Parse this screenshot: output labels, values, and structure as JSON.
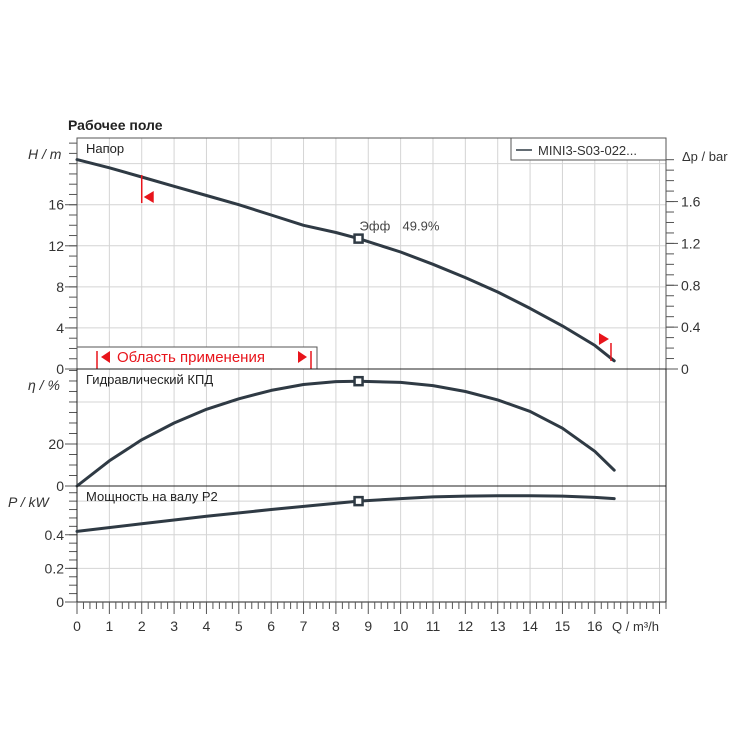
{
  "title": "Рабочее поле",
  "legend": "MINI3-S03-022...",
  "colors": {
    "curve": "#2f3a44",
    "grid": "#d4d4d4",
    "accent": "#e8141b",
    "axis": "#555555"
  },
  "chart_data": [
    {
      "type": "line",
      "panel": "head",
      "label": "Напор",
      "ylabel": "H / m",
      "ylabel_right": "Δp / bar",
      "ylim": [
        0,
        22.5
      ],
      "yticks": [
        0,
        4,
        8,
        12,
        16
      ],
      "yticks_right": [
        0,
        0.4,
        0.8,
        1.2,
        1.6
      ],
      "x": [
        0,
        1,
        2,
        3,
        4,
        5,
        6,
        7,
        8,
        8.7,
        10,
        11,
        12,
        13,
        14,
        15,
        16,
        16.6
      ],
      "y": [
        20.4,
        19.6,
        18.7,
        17.8,
        16.9,
        16.0,
        15.0,
        14.0,
        13.3,
        12.7,
        11.4,
        10.2,
        8.9,
        7.5,
        5.9,
        4.2,
        2.3,
        0.8
      ],
      "annotation": {
        "text_label": "Эфф",
        "text_value": "49.9%",
        "x": 8.7,
        "y": 12.7
      },
      "application_area": {
        "label": "Область применения",
        "q_min": 2,
        "q_max": 16.5
      }
    },
    {
      "type": "line",
      "panel": "efficiency",
      "label": "Гидравлический КПД",
      "ylabel": "η / %",
      "ylim": [
        0,
        55.7
      ],
      "yticks": [
        0,
        20
      ],
      "x": [
        0,
        1,
        2,
        3,
        4,
        5,
        6,
        7,
        8,
        8.7,
        10,
        11,
        12,
        13,
        14,
        15,
        16,
        16.6
      ],
      "y": [
        0,
        12,
        22,
        30,
        36.5,
        41.5,
        45.5,
        48.3,
        49.7,
        49.9,
        49.3,
        47.8,
        45,
        41,
        35.5,
        27.5,
        16.5,
        7.5
      ]
    },
    {
      "type": "line",
      "panel": "power",
      "label": "Мощность на валу P2",
      "ylabel": "P / kW",
      "ylim": [
        0,
        0.69
      ],
      "yticks": [
        0,
        0.2,
        0.4
      ],
      "x": [
        0,
        2,
        4,
        6,
        8.7,
        10,
        11,
        12,
        13,
        14,
        15,
        16,
        16.6
      ],
      "y": [
        0.42,
        0.465,
        0.51,
        0.55,
        0.6,
        0.615,
        0.625,
        0.63,
        0.632,
        0.632,
        0.63,
        0.622,
        0.615
      ]
    }
  ],
  "xaxis": {
    "label": "Q / m³/h",
    "xlim": [
      0,
      18.2
    ],
    "ticks": [
      0,
      1,
      2,
      3,
      4,
      5,
      6,
      7,
      8,
      9,
      10,
      11,
      12,
      13,
      14,
      15,
      16
    ]
  }
}
